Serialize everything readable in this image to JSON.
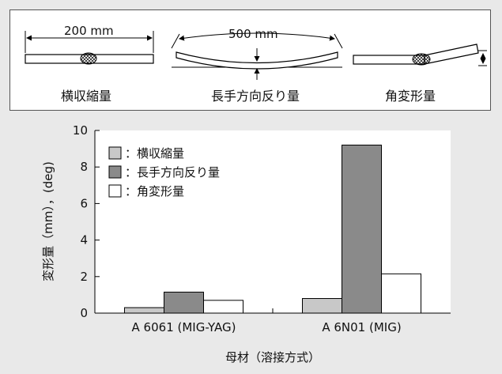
{
  "diagrams": [
    {
      "id": "transverse",
      "dimension": "200 mm",
      "label": "横収縮量"
    },
    {
      "id": "longitudinal",
      "dimension": "500 mm",
      "label": "長手方向反り量"
    },
    {
      "id": "angular",
      "dimension": "",
      "label": "角変形量"
    }
  ],
  "chart_data": {
    "type": "bar",
    "categories": [
      "A 6061 (MIG-YAG)",
      "A 6N01 (MIG)"
    ],
    "series": [
      {
        "name": "：横収縮量",
        "values": [
          0.3,
          0.8
        ],
        "color": "#c8c8c8"
      },
      {
        "name": "：長手方向反り量",
        "values": [
          1.15,
          9.2
        ],
        "color": "#8a8a8a"
      },
      {
        "name": "：角変形量",
        "values": [
          0.7,
          2.15
        ],
        "color": "#ffffff"
      }
    ],
    "ylim": [
      0,
      10
    ],
    "yticks": [
      "0",
      "2",
      "4",
      "6",
      "8",
      "10"
    ],
    "ylabel": "変形量（mm），(deg)",
    "xlabel": "母材（溶接方式）",
    "legend_position": "top-left",
    "grid": false
  }
}
